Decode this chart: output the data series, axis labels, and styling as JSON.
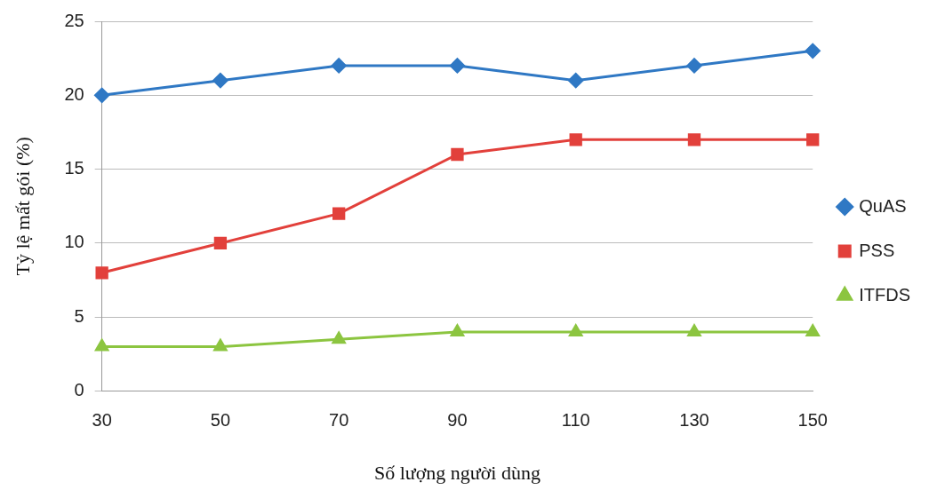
{
  "chart_data": {
    "type": "line",
    "xlabel": "Số lượng người dùng",
    "ylabel": "Tỷ lệ mất gói (%)",
    "categories": [
      "30",
      "50",
      "70",
      "90",
      "110",
      "130",
      "150"
    ],
    "series": [
      {
        "name": "QuAS",
        "color": "#2f78c4",
        "marker": "diamond",
        "values": [
          20,
          21,
          22,
          22,
          21,
          22,
          23
        ]
      },
      {
        "name": "PSS",
        "color": "#e2403b",
        "marker": "square",
        "values": [
          8,
          10,
          12,
          16,
          17,
          17,
          17
        ]
      },
      {
        "name": "ITFDS",
        "color": "#8cc540",
        "marker": "triangle",
        "values": [
          3,
          3,
          3.5,
          4,
          4,
          4,
          4
        ]
      }
    ],
    "ylim": [
      0,
      25
    ],
    "yticks": [
      0,
      5,
      10,
      15,
      20,
      25
    ],
    "grid": "y",
    "legend": "right",
    "line_style": "solid"
  }
}
